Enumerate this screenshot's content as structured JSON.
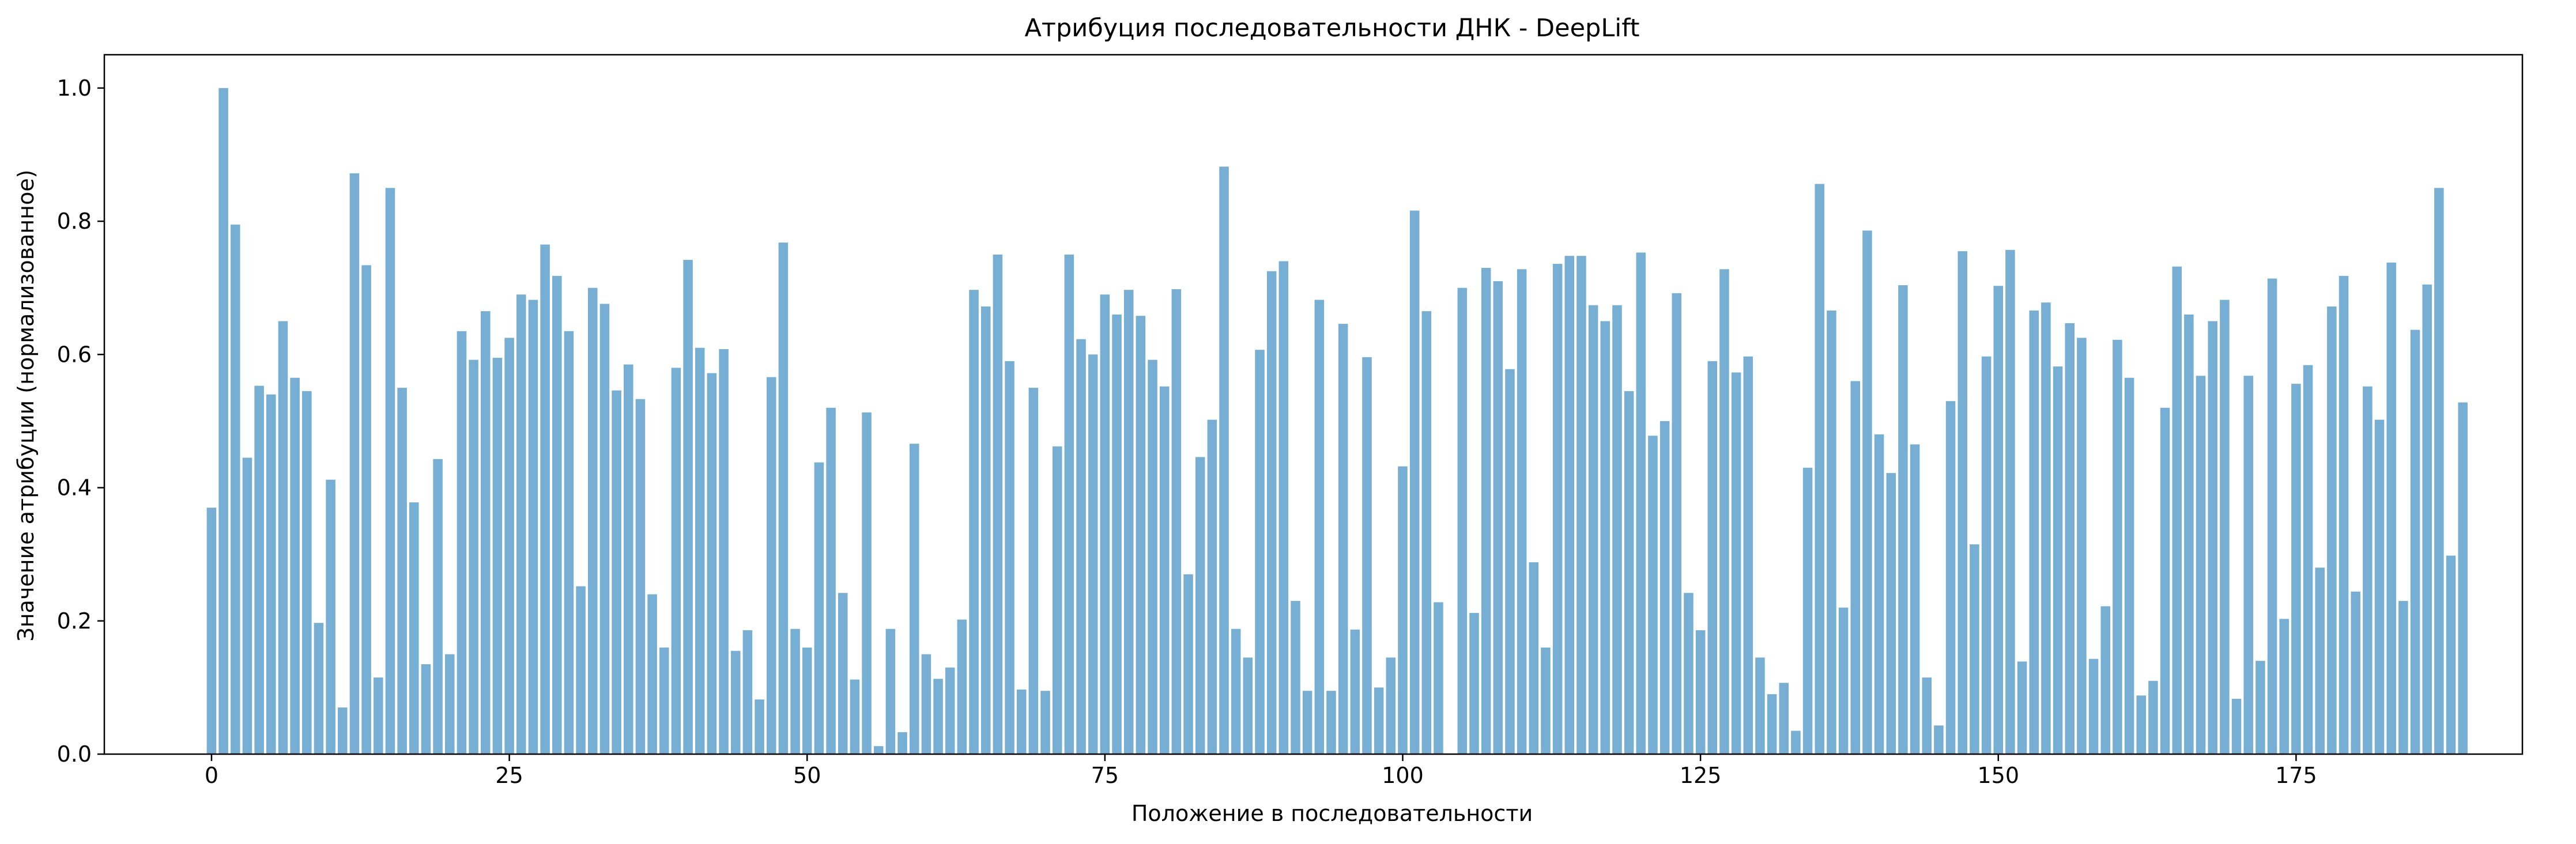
{
  "chart_data": {
    "type": "bar",
    "title": "Атрибуция последовательности ДНК - DeepLift",
    "xlabel": "Положение в последовательности",
    "ylabel": "Значение атрибуции (нормализованное)",
    "xlim": [
      -9,
      194
    ],
    "ylim": [
      0,
      1.05
    ],
    "x_ticks": [
      "0",
      "25",
      "50",
      "75",
      "100",
      "125",
      "150",
      "175"
    ],
    "y_ticks": [
      "0.0",
      "0.2",
      "0.4",
      "0.6",
      "0.8",
      "1.0"
    ],
    "grid": false,
    "bar_color": "#77aed4",
    "values": [
      0.37,
      1.0,
      0.795,
      0.445,
      0.553,
      0.54,
      0.65,
      0.565,
      0.545,
      0.197,
      0.412,
      0.07,
      0.872,
      0.734,
      0.115,
      0.85,
      0.55,
      0.378,
      0.135,
      0.443,
      0.15,
      0.635,
      0.592,
      0.665,
      0.595,
      0.625,
      0.69,
      0.682,
      0.765,
      0.718,
      0.635,
      0.252,
      0.7,
      0.676,
      0.546,
      0.585,
      0.533,
      0.24,
      0.16,
      0.58,
      0.742,
      0.61,
      0.572,
      0.608,
      0.155,
      0.186,
      0.082,
      0.566,
      0.768,
      0.188,
      0.16,
      0.438,
      0.52,
      0.242,
      0.112,
      0.513,
      0.012,
      0.188,
      0.033,
      0.466,
      0.15,
      0.113,
      0.13,
      0.202,
      0.697,
      0.672,
      0.75,
      0.59,
      0.097,
      0.55,
      0.095,
      0.462,
      0.75,
      0.623,
      0.6,
      0.69,
      0.66,
      0.697,
      0.658,
      0.592,
      0.552,
      0.698,
      0.27,
      0.446,
      0.502,
      0.882,
      0.188,
      0.145,
      0.607,
      0.725,
      0.74,
      0.23,
      0.095,
      0.682,
      0.095,
      0.646,
      0.187,
      0.596,
      0.1,
      0.145,
      0.432,
      0.816,
      0.665,
      0.228,
      0.0,
      0.7,
      0.212,
      0.73,
      0.71,
      0.578,
      0.728,
      0.288,
      0.16,
      0.736,
      0.748,
      0.748,
      0.674,
      0.65,
      0.674,
      0.545,
      0.753,
      0.478,
      0.5,
      0.692,
      0.242,
      0.186,
      0.59,
      0.728,
      0.573,
      0.597,
      0.145,
      0.09,
      0.107,
      0.035,
      0.43,
      0.856,
      0.666,
      0.22,
      0.56,
      0.786,
      0.48,
      0.422,
      0.704,
      0.465,
      0.115,
      0.043,
      0.53,
      0.755,
      0.315,
      0.597,
      0.703,
      0.757,
      0.139,
      0.666,
      0.678,
      0.582,
      0.647,
      0.625,
      0.143,
      0.222,
      0.622,
      0.565,
      0.088,
      0.11,
      0.52,
      0.732,
      0.66,
      0.568,
      0.65,
      0.682,
      0.083,
      0.568,
      0.14,
      0.714,
      0.203,
      0.556,
      0.584,
      0.28,
      0.672,
      0.718,
      0.244,
      0.552,
      0.502,
      0.738,
      0.23,
      0.637,
      0.705,
      0.85,
      0.298,
      0.528
    ]
  }
}
